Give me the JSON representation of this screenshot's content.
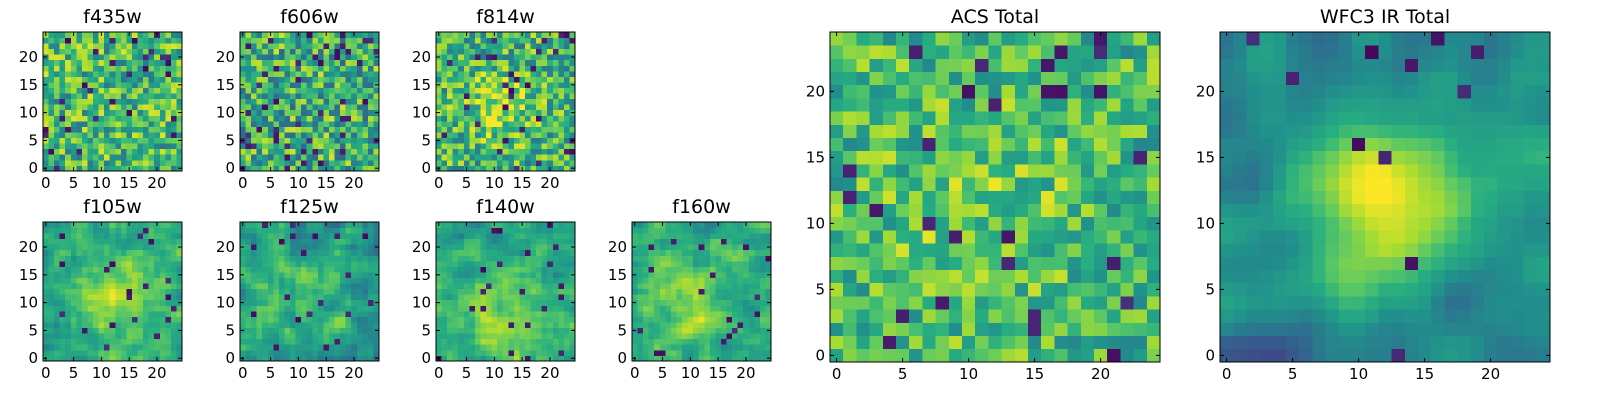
{
  "chart_data": [
    {
      "type": "heatmap",
      "title": "f435w",
      "x_ticks": [
        0,
        5,
        10,
        15,
        20
      ],
      "y_ticks": [
        0,
        5,
        10,
        15,
        20
      ],
      "xlim": [
        0,
        25
      ],
      "ylim": [
        0,
        25
      ],
      "grid": false,
      "colormap": "viridis",
      "description_of_values": "pixel noise field, roughly uniform bright-green/yellow with scattered dark pixels"
    },
    {
      "type": "heatmap",
      "title": "f606w",
      "x_ticks": [
        0,
        5,
        10,
        15,
        20
      ],
      "y_ticks": [
        0,
        5,
        10,
        15,
        20
      ],
      "xlim": [
        0,
        25
      ],
      "ylim": [
        0,
        25
      ],
      "grid": false,
      "colormap": "viridis"
    },
    {
      "type": "heatmap",
      "title": "f814w",
      "x_ticks": [
        0,
        5,
        10,
        15,
        20
      ],
      "y_ticks": [
        0,
        5,
        10,
        15,
        20
      ],
      "xlim": [
        0,
        25
      ],
      "ylim": [
        0,
        25
      ],
      "grid": false,
      "colormap": "viridis"
    },
    {
      "type": "heatmap",
      "title": "f105w",
      "x_ticks": [
        0,
        5,
        10,
        15,
        20
      ],
      "y_ticks": [
        0,
        5,
        10,
        15,
        20
      ],
      "xlim": [
        0,
        25
      ],
      "ylim": [
        0,
        25
      ],
      "grid": false,
      "colormap": "viridis"
    },
    {
      "type": "heatmap",
      "title": "f125w",
      "x_ticks": [
        0,
        5,
        10,
        15,
        20
      ],
      "y_ticks": [
        0,
        5,
        10,
        15,
        20
      ],
      "xlim": [
        0,
        25
      ],
      "ylim": [
        0,
        25
      ],
      "grid": false,
      "colormap": "viridis"
    },
    {
      "type": "heatmap",
      "title": "f140w",
      "x_ticks": [
        0,
        5,
        10,
        15,
        20
      ],
      "y_ticks": [
        0,
        5,
        10,
        15,
        20
      ],
      "xlim": [
        0,
        25
      ],
      "ylim": [
        0,
        25
      ],
      "grid": false,
      "colormap": "viridis"
    },
    {
      "type": "heatmap",
      "title": "f160w",
      "x_ticks": [
        0,
        5,
        10,
        15,
        20
      ],
      "y_ticks": [
        0,
        5,
        10,
        15,
        20
      ],
      "xlim": [
        0,
        25
      ],
      "ylim": [
        0,
        25
      ],
      "grid": false,
      "colormap": "viridis"
    },
    {
      "type": "heatmap",
      "title": "ACS Total",
      "x_ticks": [
        0,
        5,
        10,
        15,
        20
      ],
      "y_ticks": [
        0,
        5,
        10,
        15,
        20
      ],
      "xlim": [
        0,
        25
      ],
      "ylim": [
        0,
        25
      ],
      "grid": false,
      "colormap": "viridis"
    },
    {
      "type": "heatmap",
      "title": "WFC3 IR Total",
      "x_ticks": [
        0,
        5,
        10,
        15,
        20
      ],
      "y_ticks": [
        0,
        5,
        10,
        15,
        20
      ],
      "xlim": [
        0,
        25
      ],
      "ylim": [
        0,
        25
      ],
      "grid": false,
      "colormap": "viridis"
    }
  ],
  "colors": {
    "viridis_dark": "#440154",
    "viridis_blue": "#3b528b",
    "viridis_teal": "#21918c",
    "viridis_green": "#5ec962",
    "viridis_yellow": "#fde725"
  }
}
